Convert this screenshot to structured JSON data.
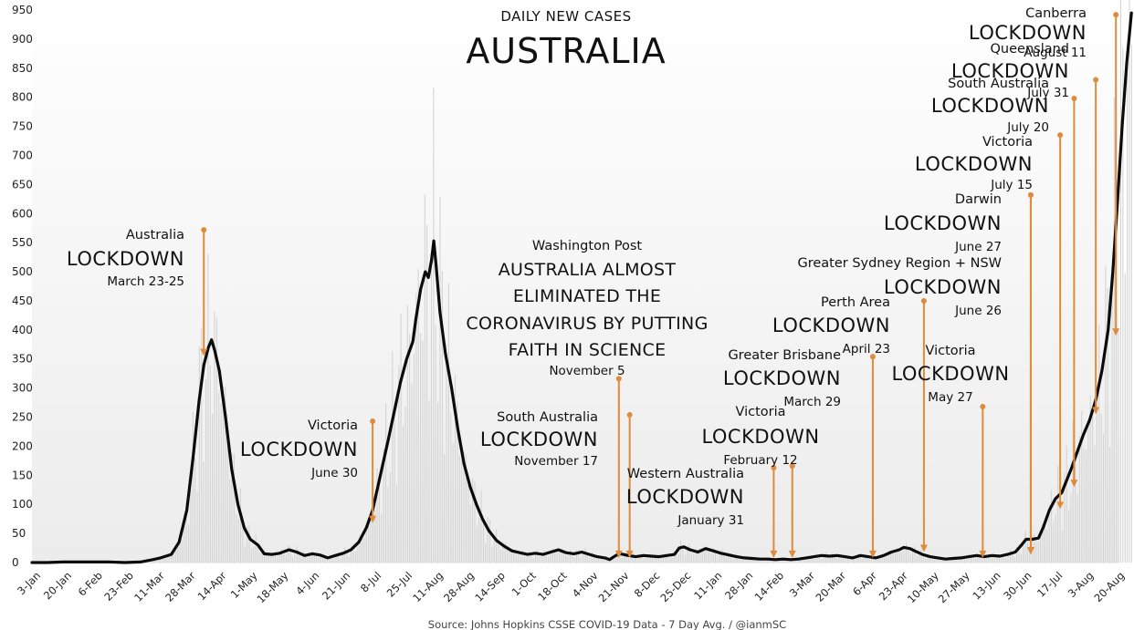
{
  "chart_data": {
    "type": "line",
    "title": "AUSTRALIA",
    "subtitle": "DAILY NEW CASES",
    "source": "Source: Johns Hopkins CSSE COVID-19 Data - 7 Day Avg. / @ianmSC",
    "ylim": [
      0,
      950
    ],
    "yticks": [
      0,
      50,
      100,
      150,
      200,
      250,
      300,
      350,
      400,
      450,
      500,
      550,
      600,
      650,
      700,
      750,
      800,
      850,
      900,
      950
    ],
    "grid": false,
    "xticks": [
      "3-Jan",
      "20-Jan",
      "6-Feb",
      "23-Feb",
      "11-Mar",
      "28-Mar",
      "14-Apr",
      "1-May",
      "18-May",
      "4-Jun",
      "21-Jun",
      "8-Jul",
      "25-Jul",
      "11-Aug",
      "28-Aug",
      "14-Sep",
      "1-Oct",
      "18-Oct",
      "4-Nov",
      "21-Nov",
      "8-Dec",
      "25-Dec",
      "11-Jan",
      "28-Jan",
      "14-Feb",
      "3-Mar",
      "20-Mar",
      "6-Apr",
      "23-Apr",
      "10-May",
      "27-May",
      "13-Jun",
      "30-Jun",
      "17-Jul",
      "3-Aug",
      "20-Aug"
    ],
    "series": [
      {
        "values": [
          [
            0,
            0
          ],
          [
            1,
            0
          ],
          [
            2,
            1
          ],
          [
            3,
            1
          ],
          [
            4,
            1
          ],
          [
            5,
            1
          ],
          [
            6,
            0
          ],
          [
            7,
            1
          ],
          [
            7.8,
            5
          ],
          [
            8.3,
            8
          ],
          [
            9,
            14
          ],
          [
            9.5,
            35
          ],
          [
            10,
            90
          ],
          [
            10.4,
            180
          ],
          [
            10.8,
            280
          ],
          [
            11.1,
            340
          ],
          [
            11.4,
            370
          ],
          [
            11.6,
            383
          ],
          [
            11.8,
            365
          ],
          [
            12.1,
            330
          ],
          [
            12.5,
            250
          ],
          [
            12.9,
            160
          ],
          [
            13.3,
            100
          ],
          [
            13.7,
            60
          ],
          [
            14.1,
            40
          ],
          [
            14.6,
            30
          ],
          [
            15,
            15
          ],
          [
            15.5,
            14
          ],
          [
            16,
            16
          ],
          [
            16.6,
            22
          ],
          [
            17.1,
            18
          ],
          [
            17.6,
            12
          ],
          [
            18.1,
            15
          ],
          [
            18.6,
            13
          ],
          [
            19.1,
            8
          ],
          [
            19.6,
            12
          ],
          [
            20.1,
            16
          ],
          [
            20.6,
            22
          ],
          [
            21.1,
            35
          ],
          [
            21.6,
            60
          ],
          [
            22,
            90
          ],
          [
            22.5,
            150
          ],
          [
            23,
            210
          ],
          [
            23.4,
            260
          ],
          [
            23.8,
            310
          ],
          [
            24.2,
            350
          ],
          [
            24.6,
            380
          ],
          [
            24.8,
            420
          ],
          [
            25.1,
            470
          ],
          [
            25.4,
            500
          ],
          [
            25.6,
            490
          ],
          [
            25.8,
            520
          ],
          [
            25.95,
            553
          ],
          [
            26.1,
            510
          ],
          [
            26.35,
            430
          ],
          [
            26.7,
            360
          ],
          [
            27.1,
            300
          ],
          [
            27.5,
            230
          ],
          [
            27.9,
            170
          ],
          [
            28.3,
            130
          ],
          [
            28.7,
            100
          ],
          [
            29.1,
            75
          ],
          [
            29.5,
            55
          ],
          [
            30,
            38
          ],
          [
            30.5,
            28
          ],
          [
            31,
            20
          ],
          [
            31.5,
            17
          ],
          [
            32,
            14
          ],
          [
            32.5,
            16
          ],
          [
            33,
            14
          ],
          [
            33.5,
            18
          ],
          [
            34,
            22
          ],
          [
            34.5,
            17
          ],
          [
            35,
            15
          ],
          [
            35.5,
            18
          ],
          [
            36,
            14
          ],
          [
            36.5,
            10
          ],
          [
            37,
            8
          ],
          [
            37.3,
            5
          ],
          [
            37.7,
            12
          ],
          [
            38,
            15
          ],
          [
            38.5,
            12
          ],
          [
            39,
            10
          ],
          [
            39.5,
            12
          ],
          [
            40,
            11
          ],
          [
            40.5,
            10
          ],
          [
            41,
            12
          ],
          [
            41.5,
            14
          ],
          [
            41.8,
            25
          ],
          [
            42.1,
            27
          ],
          [
            42.5,
            22
          ],
          [
            43,
            18
          ],
          [
            43.5,
            24
          ],
          [
            44,
            20
          ],
          [
            44.5,
            16
          ],
          [
            45,
            13
          ],
          [
            45.5,
            10
          ],
          [
            46,
            8
          ],
          [
            46.5,
            7
          ],
          [
            47,
            6
          ],
          [
            47.5,
            6
          ],
          [
            48,
            5
          ],
          [
            48.5,
            6
          ],
          [
            49,
            5
          ],
          [
            49.5,
            6
          ],
          [
            50,
            8
          ],
          [
            50.5,
            10
          ],
          [
            51,
            12
          ],
          [
            51.5,
            11
          ],
          [
            52,
            12
          ],
          [
            52.5,
            10
          ],
          [
            53,
            8
          ],
          [
            53.5,
            12
          ],
          [
            54,
            10
          ],
          [
            54.5,
            8
          ],
          [
            55,
            12
          ],
          [
            55.5,
            18
          ],
          [
            56,
            22
          ],
          [
            56.3,
            26
          ],
          [
            56.7,
            24
          ],
          [
            57,
            20
          ],
          [
            57.5,
            14
          ],
          [
            58,
            10
          ],
          [
            58.5,
            8
          ],
          [
            59,
            6
          ],
          [
            59.5,
            7
          ],
          [
            60,
            8
          ],
          [
            60.5,
            10
          ],
          [
            61,
            12
          ],
          [
            61.5,
            10
          ],
          [
            62,
            12
          ],
          [
            62.5,
            11
          ],
          [
            63,
            14
          ],
          [
            63.5,
            18
          ],
          [
            63.9,
            30
          ],
          [
            64.2,
            40
          ],
          [
            64.6,
            40
          ],
          [
            65,
            42
          ],
          [
            65.3,
            60
          ],
          [
            65.7,
            90
          ],
          [
            66.1,
            110
          ],
          [
            66.5,
            120
          ],
          [
            66.8,
            140
          ],
          [
            67.1,
            160
          ],
          [
            67.5,
            190
          ],
          [
            67.9,
            220
          ],
          [
            68.3,
            245
          ],
          [
            68.7,
            280
          ],
          [
            69.1,
            330
          ],
          [
            69.5,
            400
          ],
          [
            69.8,
            500
          ],
          [
            70.1,
            620
          ],
          [
            70.4,
            750
          ],
          [
            70.7,
            860
          ],
          [
            71,
            945
          ]
        ]
      }
    ],
    "headline": {
      "source_name": "Washington Post",
      "lines": [
        "AUSTRALIA ALMOST",
        "ELIMINATED THE",
        "CORONAVIRUS BY PUTTING",
        "FAITH IN SCIENCE"
      ],
      "date": "November 5"
    },
    "annotations": [
      {
        "place": "Australia",
        "label": "LOCKDOWN",
        "date": "March 23-25",
        "x": 11.1,
        "y_top": 572,
        "y_bottom": 355
      },
      {
        "place": "Victoria",
        "label": "LOCKDOWN",
        "date": "June 30",
        "x": 22.0,
        "y_top": 243,
        "y_bottom": 68
      },
      {
        "place": "South Australia",
        "label": "LOCKDOWN",
        "date": "November 17",
        "x": 38.6,
        "y_top": 254,
        "y_bottom": 8
      },
      {
        "place": "Washington Post",
        "label": "",
        "date": "November 5",
        "x": 37.9,
        "y_top": 316,
        "y_bottom": 8
      },
      {
        "place": "Western Australia",
        "label": "LOCKDOWN",
        "date": "January 31",
        "x": 47.9,
        "y_top": 163,
        "y_bottom": 8
      },
      {
        "place": "Victoria",
        "label": "LOCKDOWN",
        "date": "February 12",
        "x": 49.1,
        "y_top": 166,
        "y_bottom": 8
      },
      {
        "place": "Greater Brisbane",
        "label": "LOCKDOWN",
        "date": "March 29",
        "x": 54.3,
        "y_top": 354,
        "y_bottom": 8
      },
      {
        "place": "Perth Area",
        "label": "LOCKDOWN",
        "date": "April 23",
        "x": 57.6,
        "y_top": 450,
        "y_bottom": 18
      },
      {
        "place": "Victoria",
        "label": "LOCKDOWN",
        "date": "May 27",
        "x": 61.4,
        "y_top": 268,
        "y_bottom": 8
      },
      {
        "place": "Greater Sydney Region + NSW",
        "label": "LOCKDOWN",
        "date": "June 26",
        "x": 64.5,
        "y_top": 632,
        "y_bottom": 14
      },
      {
        "place": "Darwin",
        "label": "LOCKDOWN",
        "date": "June 27",
        "x": 64.5,
        "y_top": 632,
        "y_bottom": 14
      },
      {
        "place": "Victoria",
        "label": "LOCKDOWN",
        "date": "July 15",
        "x": 66.4,
        "y_top": 735,
        "y_bottom": 92
      },
      {
        "place": "South Australia",
        "label": "LOCKDOWN",
        "date": "July 20",
        "x": 67.3,
        "y_top": 798,
        "y_bottom": 130
      },
      {
        "place": "Queensland",
        "label": "LOCKDOWN",
        "date": "July 31",
        "x": 68.7,
        "y_top": 830,
        "y_bottom": 255
      },
      {
        "place": "Canberra",
        "label": "LOCKDOWN",
        "date": "August 11",
        "x": 70.0,
        "y_top": 942,
        "y_bottom": 390
      }
    ]
  }
}
